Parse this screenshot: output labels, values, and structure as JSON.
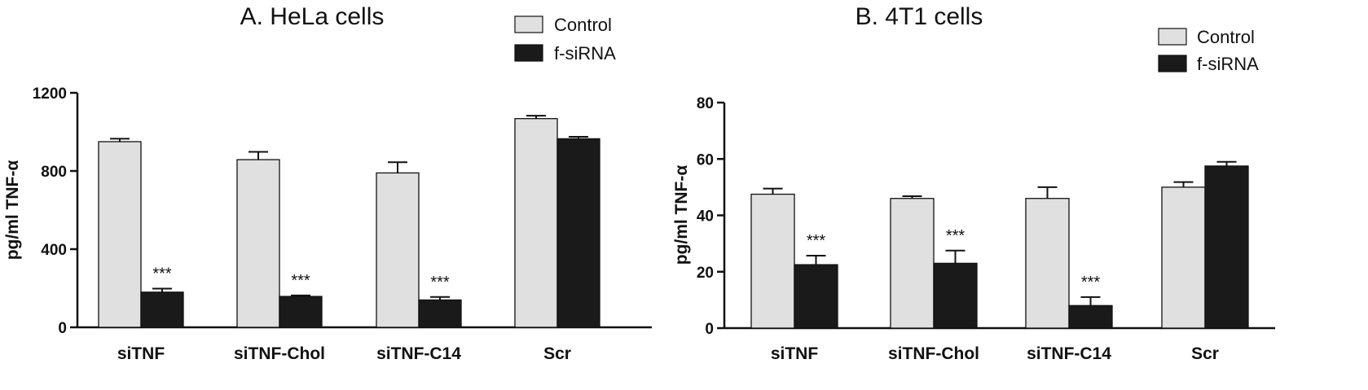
{
  "chart_data": [
    {
      "type": "bar",
      "title": "A. HeLa cells",
      "ylabel": "pg/ml TNF-α",
      "xlabel": "",
      "ylim": [
        0,
        1200
      ],
      "yticks": [
        0,
        400,
        800,
        1200
      ],
      "categories": [
        "siTNF",
        "siTNF-Chol",
        "siTNF-C14",
        "Scr"
      ],
      "series": [
        {
          "name": "Control",
          "color": "#e0e0e0",
          "values": [
            950,
            858,
            790,
            1068
          ],
          "errors": [
            15,
            40,
            55,
            15
          ]
        },
        {
          "name": "f-siRNA",
          "color": "#1a1a1a",
          "values": [
            180,
            158,
            140,
            965
          ],
          "errors": [
            18,
            5,
            15,
            10
          ]
        }
      ],
      "annotations": [
        {
          "category": "siTNF",
          "series": "f-siRNA",
          "text": "***"
        },
        {
          "category": "siTNF-Chol",
          "series": "f-siRNA",
          "text": "***"
        },
        {
          "category": "siTNF-C14",
          "series": "f-siRNA",
          "text": "***"
        }
      ],
      "legend": "top-right",
      "grid": false
    },
    {
      "type": "bar",
      "title": "B. 4T1 cells",
      "ylabel": "pg/ml TNF-α",
      "xlabel": "",
      "ylim": [
        0,
        80
      ],
      "yticks": [
        0,
        20,
        40,
        60,
        80
      ],
      "categories": [
        "siTNF",
        "siTNF-Chol",
        "siTNF-C14",
        "Scr"
      ],
      "series": [
        {
          "name": "Control",
          "color": "#e0e0e0",
          "values": [
            47.5,
            46,
            46,
            50
          ],
          "errors": [
            2,
            0.8,
            4,
            1.8
          ]
        },
        {
          "name": "f-siRNA",
          "color": "#1a1a1a",
          "values": [
            22.5,
            23,
            8,
            57.5
          ],
          "errors": [
            3.2,
            4.5,
            3,
            1.5
          ]
        }
      ],
      "annotations": [
        {
          "category": "siTNF",
          "series": "f-siRNA",
          "text": "***"
        },
        {
          "category": "siTNF-Chol",
          "series": "f-siRNA",
          "text": "***"
        },
        {
          "category": "siTNF-C14",
          "series": "f-siRNA",
          "text": "***"
        }
      ],
      "legend": "top-right",
      "grid": false
    }
  ]
}
